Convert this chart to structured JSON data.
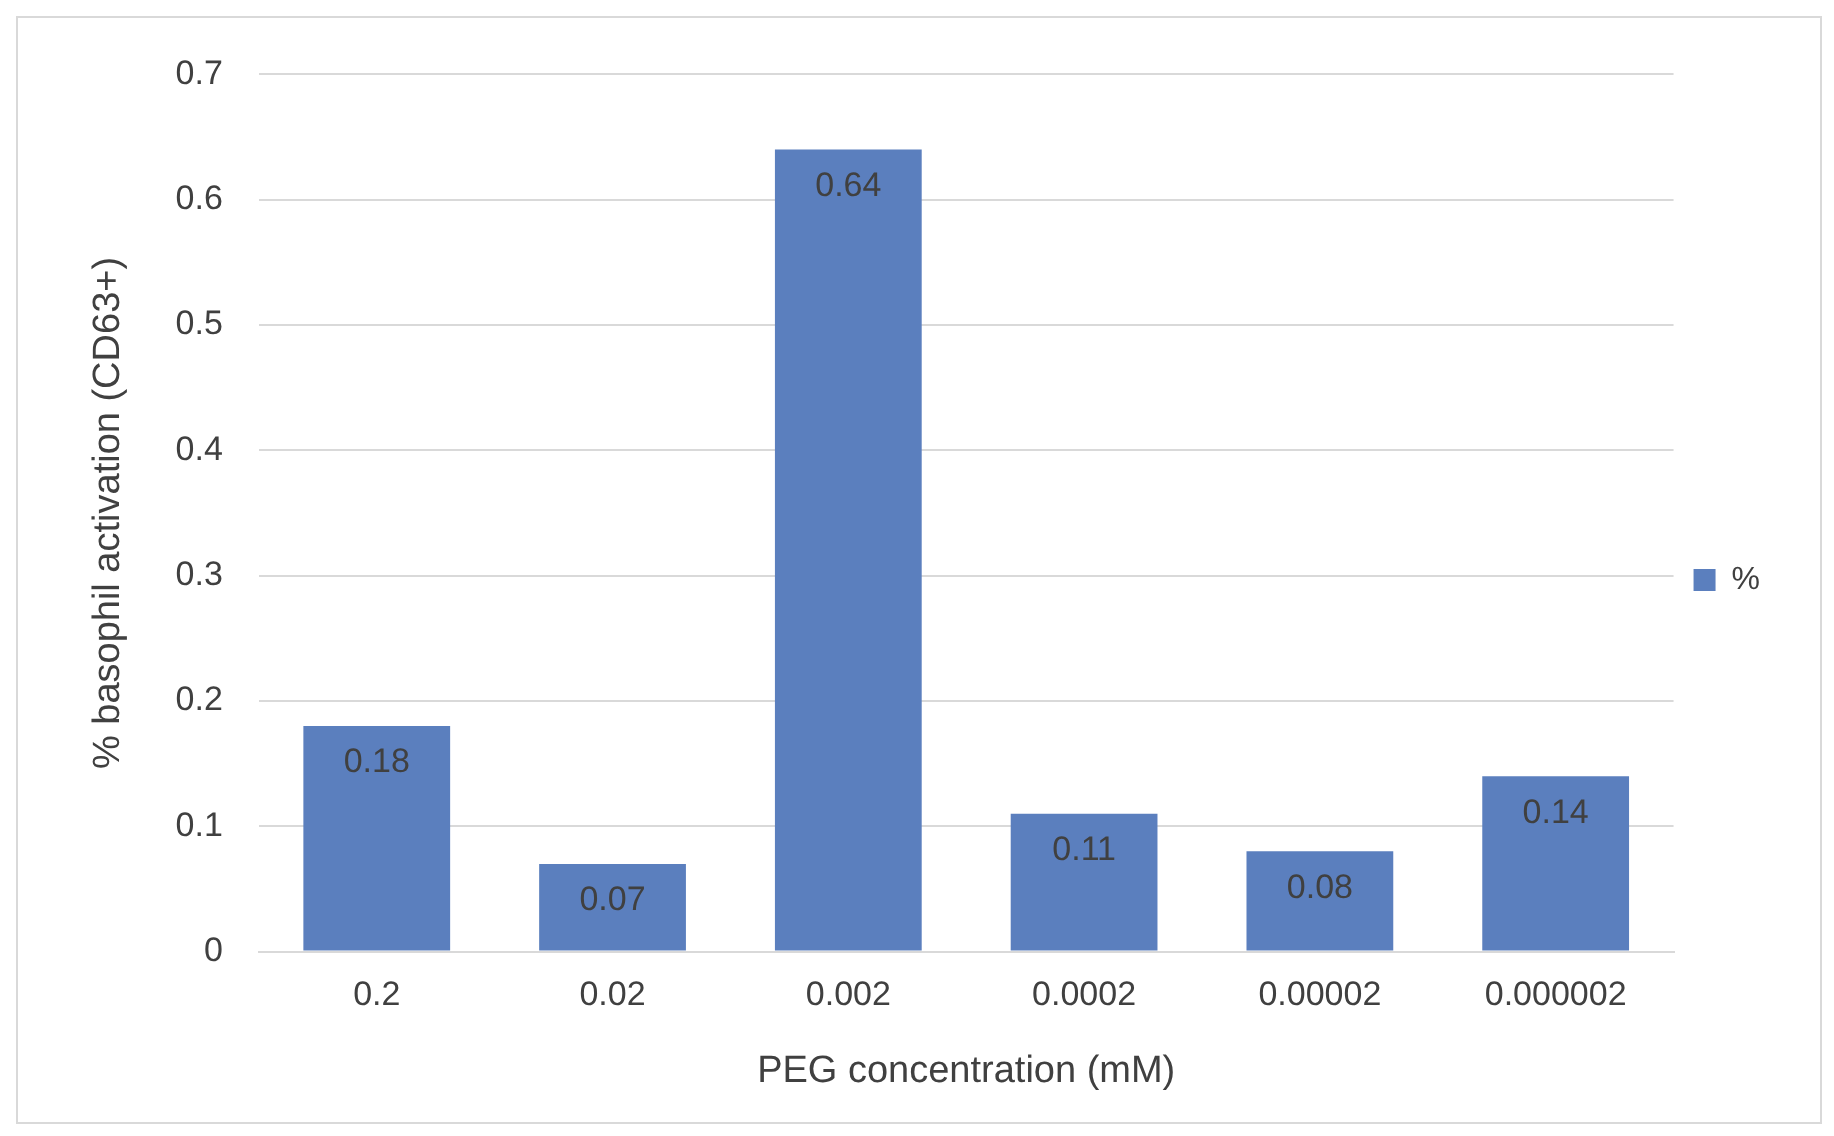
{
  "chart_data": {
    "type": "bar",
    "xlabel": "PEG concentration (mM)",
    "ylabel": "% basophil activation (CD63+)",
    "categories": [
      "0.2",
      "0.02",
      "0.002",
      "0.0002",
      "0.00002",
      "0.000002"
    ],
    "series": [
      {
        "name": "%",
        "color": "#5b7fbe",
        "values": [
          0.18,
          0.07,
          0.64,
          0.11,
          0.08,
          0.14
        ]
      }
    ],
    "ylim": [
      0,
      0.7
    ],
    "yticks": [
      0,
      0.1,
      0.2,
      0.3,
      0.4,
      0.5,
      0.6,
      0.7
    ],
    "grid": "y",
    "legend": "right",
    "data_labels": true
  }
}
